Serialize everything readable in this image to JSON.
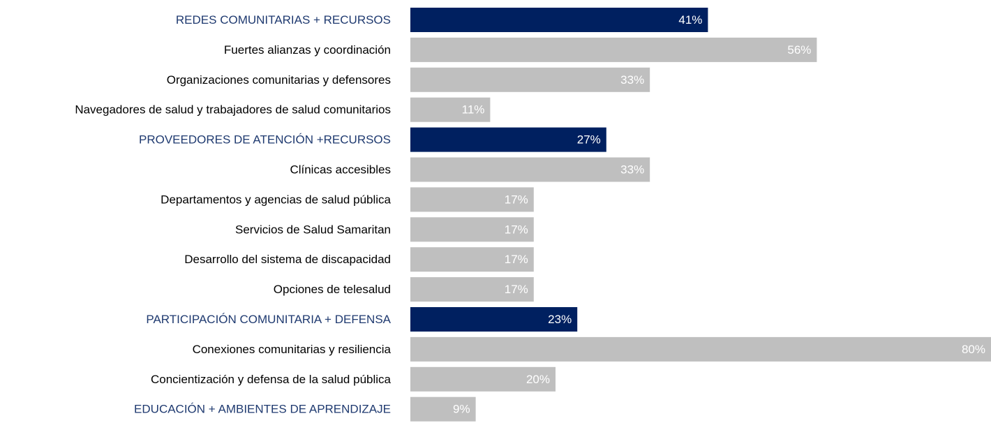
{
  "chart_data": {
    "type": "barh",
    "categories": [
      "REDES COMUNITARIAS + RECURSOS",
      "Fuertes alianzas y coordinación",
      "Organizaciones comunitarias y defensores",
      "Navegadores de salud y trabajadores de salud comunitarios",
      "PROVEEDORES DE ATENCIÓN +RECURSOS",
      "Clínicas accesibles",
      "Departamentos y agencias de salud pública",
      "Servicios de Salud Samaritan",
      "Desarrollo del sistema de discapacidad",
      "Opciones de telesalud",
      "PARTICIPACIÓN COMUNITARIA + DEFENSA",
      "Conexiones comunitarias y resiliencia",
      "Concientización y defensa de la salud pública",
      "EDUCACIÓN + AMBIENTES DE APRENDIZAJE"
    ],
    "values": [
      41,
      56,
      33,
      11,
      27,
      33,
      17,
      17,
      17,
      17,
      23,
      80,
      20,
      9
    ],
    "value_labels": [
      "41%",
      "56%",
      "33%",
      "11%",
      "27%",
      "33%",
      "17%",
      "17%",
      "17%",
      "17%",
      "23%",
      "80%",
      "20%",
      "9%"
    ],
    "colors": [
      "#002060",
      "#bfbfbf",
      "#bfbfbf",
      "#bfbfbf",
      "#002060",
      "#bfbfbf",
      "#bfbfbf",
      "#bfbfbf",
      "#bfbfbf",
      "#bfbfbf",
      "#002060",
      "#bfbfbf",
      "#bfbfbf",
      "#bfbfbf"
    ],
    "label_colors": [
      "#1f3a70",
      "#000000",
      "#000000",
      "#000000",
      "#1f3a70",
      "#000000",
      "#000000",
      "#000000",
      "#000000",
      "#000000",
      "#1f3a70",
      "#000000",
      "#000000",
      "#1f3a70"
    ],
    "xlim": [
      0,
      80
    ]
  }
}
